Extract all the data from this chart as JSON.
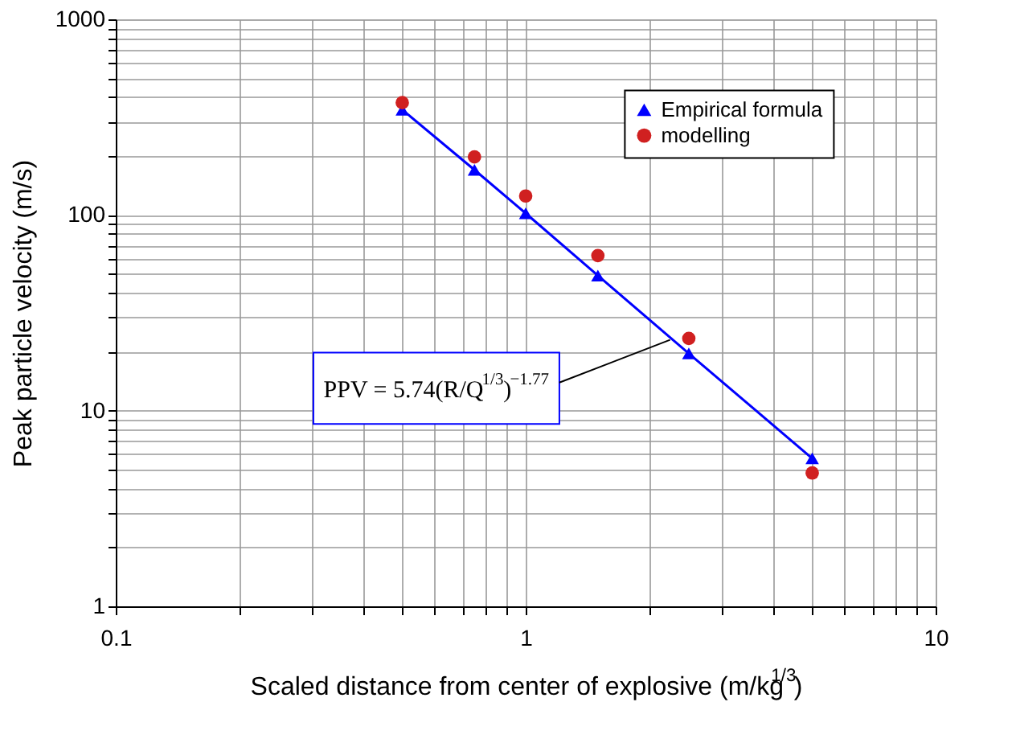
{
  "chart_data": {
    "type": "line",
    "xlabel": "Scaled distance from center of explosive (m/kg$^{1/3}$)",
    "ylabel": "Peak particle velocity (m/s)",
    "log": "xy",
    "grid": true,
    "legend": "top right",
    "xlim": [
      0.1,
      10
    ],
    "ylim": [
      1,
      1000
    ],
    "xticks": [
      0.1,
      {
        "value": 0.2,
        "label": null
      },
      {
        "value": 0.3,
        "label": null
      },
      {
        "value": 0.4,
        "label": null
      },
      {
        "value": 0.5,
        "label": null
      },
      {
        "value": 0.6,
        "label": null
      },
      {
        "value": 0.7,
        "label": null
      },
      {
        "value": 0.8,
        "label": null
      },
      {
        "value": 0.9,
        "label": null
      },
      1,
      {
        "value": 2,
        "label": null
      },
      {
        "value": 3,
        "label": null
      },
      {
        "value": 4,
        "label": null
      },
      {
        "value": 5,
        "label": null
      },
      {
        "value": 6,
        "label": null
      },
      {
        "value": 7,
        "label": null
      },
      {
        "value": 8,
        "label": null
      },
      {
        "value": 9,
        "label": null
      },
      10
    ],
    "yticks": [
      1,
      {
        "value": 2,
        "label": null
      },
      {
        "value": 3,
        "label": null
      },
      {
        "value": 4,
        "label": null
      },
      {
        "value": 5,
        "label": null
      },
      {
        "value": 6,
        "label": null
      },
      {
        "value": 7,
        "label": null
      },
      {
        "value": 8,
        "label": null
      },
      {
        "value": 9,
        "label": null
      },
      10,
      {
        "value": 20,
        "label": null
      },
      {
        "value": 30,
        "label": null
      },
      {
        "value": 40,
        "label": null
      },
      {
        "value": 50,
        "label": null
      },
      {
        "value": 60,
        "label": null
      },
      {
        "value": 70,
        "label": null
      },
      {
        "value": 80,
        "label": null
      },
      {
        "value": 90,
        "label": null
      },
      100,
      {
        "value": 200,
        "label": null
      },
      {
        "value": 300,
        "label": null
      },
      {
        "value": 400,
        "label": null
      },
      {
        "value": 500,
        "label": null
      },
      {
        "value": 600,
        "label": null
      },
      {
        "value": 700,
        "label": null
      },
      {
        "value": 800,
        "label": null
      },
      {
        "value": 900,
        "label": null
      },
      1000
    ],
    "x": [
      0.5,
      0.75,
      1,
      1.5,
      2.5,
      5
    ],
    "series": [
      {
        "name": "Empirical formula",
        "type": "line",
        "marker": "triangle",
        "color": "#0000ff",
        "values": [
          345,
          170,
          102,
          49,
          19.6,
          5.7
        ]
      },
      {
        "name": "modelling",
        "type": "scatter",
        "marker": "circle",
        "color": "#d02020",
        "values": [
          375,
          198,
          125,
          62,
          23.4,
          4.8
        ]
      }
    ],
    "annotations": [
      {
        "text": "PPV = 5.74(R/Q$^{1/3}$)$^{−1.77}$",
        "x": 2.25,
        "y": 23
      }
    ]
  }
}
